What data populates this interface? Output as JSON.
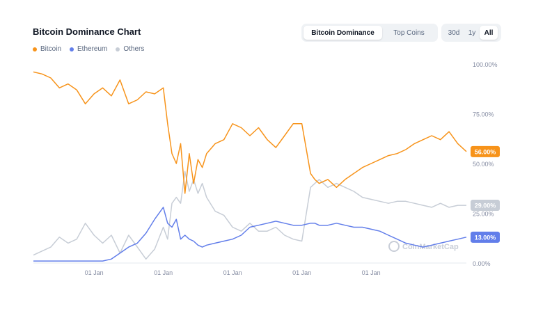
{
  "header": {
    "title": "Bitcoin Dominance Chart",
    "tabs": [
      {
        "label": "Bitcoin Dominance",
        "active": true
      },
      {
        "label": "Top Coins",
        "active": false
      }
    ],
    "ranges": [
      {
        "label": "30d",
        "active": false
      },
      {
        "label": "1y",
        "active": false
      },
      {
        "label": "All",
        "active": true
      }
    ]
  },
  "legend": [
    {
      "label": "Bitcoin",
      "color": "#f7931a"
    },
    {
      "label": "Ethereum",
      "color": "#627eea"
    },
    {
      "label": "Others",
      "color": "#c7cdd6"
    }
  ],
  "watermark": "CoinMarketCap",
  "chart_data": {
    "type": "line",
    "title": "Bitcoin Dominance Chart",
    "ylim": [
      0,
      100
    ],
    "y_ticks": [
      "100.00%",
      "75.00%",
      "50.00%",
      "25.00%",
      "0.00%"
    ],
    "x_ticks": [
      "01 Jan",
      "01 Jan",
      "01 Jan",
      "01 Jan",
      "01 Jan"
    ],
    "x_tick_positions": [
      0.14,
      0.3,
      0.46,
      0.62,
      0.78
    ],
    "x": [
      0,
      0.02,
      0.04,
      0.06,
      0.08,
      0.1,
      0.12,
      0.14,
      0.16,
      0.18,
      0.2,
      0.22,
      0.24,
      0.26,
      0.28,
      0.3,
      0.31,
      0.32,
      0.33,
      0.34,
      0.35,
      0.36,
      0.37,
      0.38,
      0.39,
      0.4,
      0.42,
      0.44,
      0.46,
      0.48,
      0.5,
      0.52,
      0.54,
      0.56,
      0.58,
      0.6,
      0.62,
      0.64,
      0.65,
      0.66,
      0.68,
      0.7,
      0.72,
      0.74,
      0.76,
      0.78,
      0.8,
      0.82,
      0.84,
      0.86,
      0.88,
      0.9,
      0.92,
      0.94,
      0.96,
      0.98,
      1.0
    ],
    "series": [
      {
        "name": "Bitcoin",
        "color": "#f7931a",
        "end_label": "56.00%",
        "values": [
          96,
          95,
          93,
          88,
          90,
          87,
          80,
          85,
          88,
          84,
          92,
          80,
          82,
          86,
          85,
          88,
          70,
          55,
          50,
          60,
          35,
          55,
          40,
          52,
          48,
          55,
          60,
          62,
          70,
          68,
          64,
          68,
          62,
          58,
          64,
          70,
          70,
          45,
          42,
          40,
          42,
          38,
          42,
          45,
          48,
          50,
          52,
          54,
          55,
          57,
          60,
          62,
          64,
          62,
          66,
          60,
          56
        ]
      },
      {
        "name": "Ethereum",
        "color": "#627eea",
        "end_label": "13.00%",
        "values": [
          1,
          1,
          1,
          1,
          1,
          1,
          1,
          1,
          1,
          2,
          5,
          8,
          10,
          15,
          22,
          28,
          20,
          18,
          22,
          12,
          14,
          12,
          11,
          9,
          8,
          9,
          10,
          11,
          12,
          14,
          18,
          19,
          20,
          21,
          20,
          19,
          19,
          20,
          20,
          19,
          19,
          20,
          19,
          18,
          18,
          17,
          16,
          14,
          12,
          10,
          9,
          8,
          9,
          10,
          11,
          12,
          13
        ]
      },
      {
        "name": "Others",
        "color": "#c7cdd6",
        "end_label": "29.00%",
        "values": [
          4,
          6,
          8,
          13,
          10,
          12,
          20,
          14,
          10,
          14,
          5,
          14,
          8,
          2,
          7,
          18,
          12,
          30,
          33,
          30,
          46,
          36,
          42,
          35,
          40,
          33,
          26,
          24,
          18,
          16,
          20,
          16,
          16,
          18,
          14,
          12,
          11,
          38,
          40,
          42,
          38,
          40,
          38,
          36,
          33,
          32,
          31,
          30,
          31,
          31,
          30,
          29,
          28,
          30,
          28,
          29,
          29
        ]
      }
    ],
    "grid": false,
    "legend_position": "top-left"
  }
}
